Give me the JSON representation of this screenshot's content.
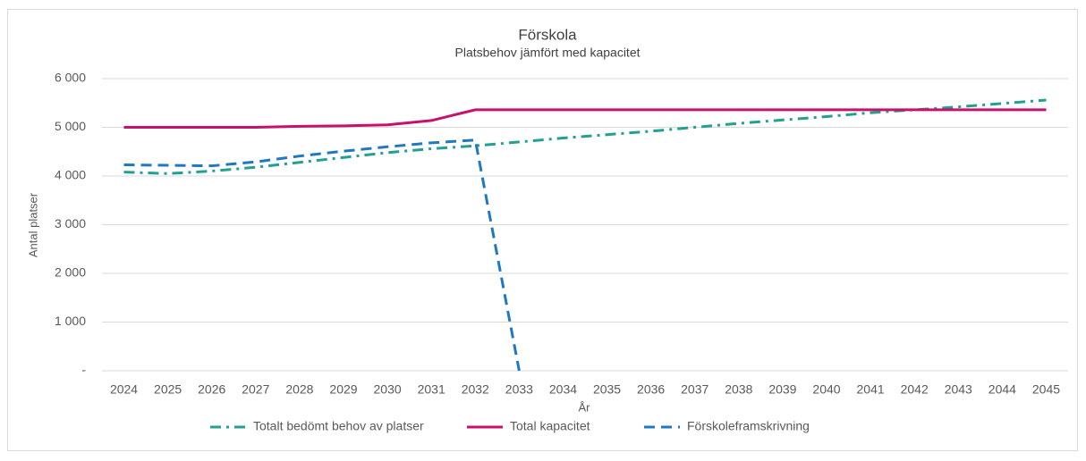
{
  "chart_data": {
    "type": "line",
    "title": "Förskola",
    "subtitle": "Platsbehov jämfört med kapacitet",
    "x_label": "År",
    "y_label": "Antal platser",
    "categories": [
      "2024",
      "2025",
      "2026",
      "2027",
      "2028",
      "2029",
      "2030",
      "2031",
      "2032",
      "2033",
      "2034",
      "2035",
      "2036",
      "2037",
      "2038",
      "2039",
      "2040",
      "2041",
      "2042",
      "2043",
      "2044",
      "2045"
    ],
    "series": [
      {
        "name": "Totalt bedömt behov av platser",
        "color": "#23a08f",
        "dash": "dashdot",
        "values": [
          4080,
          4050,
          4100,
          4180,
          4280,
          4380,
          4480,
          4560,
          4620,
          4700,
          4780,
          4850,
          4920,
          5000,
          5080,
          5150,
          5220,
          5300,
          5360,
          5420,
          5490,
          5560
        ]
      },
      {
        "name": "Total kapacitet",
        "color": "#c8106e",
        "dash": "solid",
        "values": [
          5000,
          5000,
          5000,
          5000,
          5020,
          5030,
          5050,
          5140,
          5360,
          5360,
          5360,
          5360,
          5360,
          5360,
          5360,
          5360,
          5360,
          5360,
          5360,
          5360,
          5360,
          5360
        ]
      },
      {
        "name": "Förskoleframskrivning",
        "color": "#1f78c1",
        "dash": "dashed",
        "values": [
          4230,
          4220,
          4210,
          4290,
          4410,
          4510,
          4600,
          4680,
          4740,
          0,
          null,
          null,
          null,
          null,
          null,
          null,
          null,
          null,
          null,
          null,
          null,
          null
        ]
      }
    ],
    "ylim": [
      0,
      6000
    ],
    "yticks": [
      {
        "value": 0,
        "label": "-"
      },
      {
        "value": 1000,
        "label": "1 000"
      },
      {
        "value": 2000,
        "label": "2 000"
      },
      {
        "value": 3000,
        "label": "3 000"
      },
      {
        "value": 4000,
        "label": "4 000"
      },
      {
        "value": 5000,
        "label": "5 000"
      },
      {
        "value": 6000,
        "label": "6 000"
      }
    ],
    "grid": true,
    "legend": "bottom"
  }
}
